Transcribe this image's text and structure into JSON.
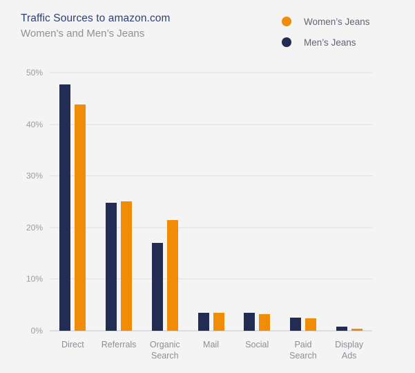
{
  "header": {
    "title": "Traffic Sources to amazon.com",
    "subtitle": "Women’s and Men’s Jeans"
  },
  "legend": {
    "items": [
      {
        "label": "Women’s Jeans",
        "color": "#f08c05"
      },
      {
        "label": "Men’s Jeans",
        "color": "#232c52"
      }
    ]
  },
  "chart_data": {
    "type": "bar",
    "title": "Traffic Sources to amazon.com",
    "subtitle": "Women’s and Men’s Jeans",
    "categories": [
      "Direct",
      "Referrals",
      "Organic\nSearch",
      "Mail",
      "Social",
      "Paid\nSearch",
      "Display\nAds"
    ],
    "series": [
      {
        "name": "Men’s Jeans",
        "color": "#232c52",
        "values": [
          47.7,
          24.8,
          17.0,
          3.5,
          3.5,
          2.6,
          0.8
        ]
      },
      {
        "name": "Women’s Jeans",
        "color": "#f08c05",
        "values": [
          43.8,
          25.1,
          21.5,
          3.5,
          3.2,
          2.4,
          0.4
        ]
      }
    ],
    "ylabel": "",
    "xlabel": "",
    "ylim": [
      0,
      50
    ],
    "yticks": [
      "0%",
      "10%",
      "20%",
      "30%",
      "40%",
      "50%"
    ],
    "grid": true,
    "legend_position": "top-right",
    "background": "#f4f4f5"
  }
}
